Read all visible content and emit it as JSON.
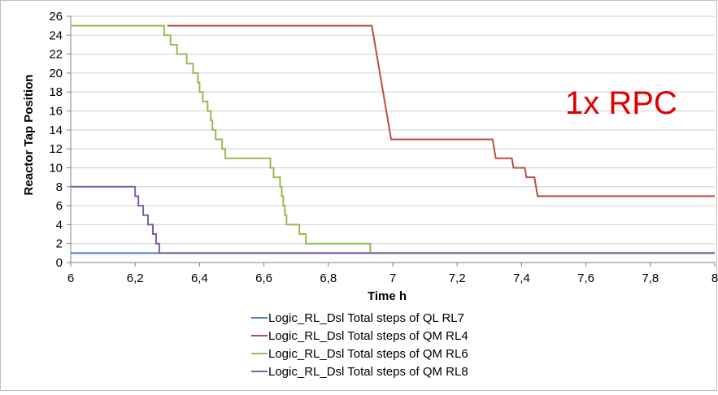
{
  "chart_data": {
    "type": "line",
    "title": "",
    "xlabel": "Time h",
    "ylabel": "Reactor Tap Position",
    "xlim": [
      6,
      8
    ],
    "ylim": [
      0,
      26
    ],
    "x_ticks": [
      "6",
      "6,2",
      "6,4",
      "6,6",
      "6,8",
      "7",
      "7,2",
      "7,4",
      "7,6",
      "7,8",
      "8"
    ],
    "y_ticks": [
      "0",
      "2",
      "4",
      "6",
      "8",
      "10",
      "12",
      "14",
      "16",
      "18",
      "20",
      "22",
      "24",
      "26"
    ],
    "grid": "horizontal",
    "legend_position": "bottom",
    "annotation": "1x RPC",
    "series": [
      {
        "name": "Logic_RL_Dsl Total steps of QL RL7",
        "color": "#4a7ebb",
        "points": [
          [
            6.0,
            1
          ],
          [
            8.0,
            1
          ]
        ]
      },
      {
        "name": "Logic_RL_Dsl Total steps of QM RL4",
        "color": "#be4b48",
        "points": [
          [
            6.3,
            25
          ],
          [
            6.935,
            25
          ],
          [
            6.94,
            24
          ],
          [
            6.945,
            23
          ],
          [
            6.95,
            22
          ],
          [
            6.955,
            21
          ],
          [
            6.96,
            20
          ],
          [
            6.965,
            19
          ],
          [
            6.97,
            18
          ],
          [
            6.975,
            17
          ],
          [
            6.98,
            16
          ],
          [
            6.985,
            15
          ],
          [
            6.99,
            14
          ],
          [
            6.995,
            13
          ],
          [
            7.31,
            13
          ],
          [
            7.315,
            12
          ],
          [
            7.32,
            11
          ],
          [
            7.37,
            11
          ],
          [
            7.375,
            10
          ],
          [
            7.41,
            10
          ],
          [
            7.415,
            9
          ],
          [
            7.44,
            9
          ],
          [
            7.445,
            8
          ],
          [
            7.45,
            7
          ],
          [
            8.0,
            7
          ]
        ]
      },
      {
        "name": "Logic_RL_Dsl Total steps of QM RL6",
        "color": "#98b954",
        "points": [
          [
            6.0,
            25
          ],
          [
            6.29,
            25
          ],
          [
            6.29,
            24
          ],
          [
            6.31,
            24
          ],
          [
            6.31,
            23
          ],
          [
            6.33,
            23
          ],
          [
            6.33,
            22
          ],
          [
            6.36,
            22
          ],
          [
            6.36,
            21
          ],
          [
            6.38,
            21
          ],
          [
            6.38,
            20
          ],
          [
            6.395,
            20
          ],
          [
            6.395,
            19
          ],
          [
            6.4,
            19
          ],
          [
            6.4,
            18
          ],
          [
            6.41,
            18
          ],
          [
            6.41,
            17
          ],
          [
            6.425,
            17
          ],
          [
            6.425,
            16
          ],
          [
            6.435,
            16
          ],
          [
            6.435,
            15
          ],
          [
            6.44,
            15
          ],
          [
            6.44,
            14
          ],
          [
            6.45,
            14
          ],
          [
            6.45,
            13
          ],
          [
            6.47,
            13
          ],
          [
            6.47,
            12
          ],
          [
            6.48,
            12
          ],
          [
            6.48,
            11
          ],
          [
            6.62,
            11
          ],
          [
            6.62,
            10
          ],
          [
            6.63,
            10
          ],
          [
            6.63,
            9
          ],
          [
            6.65,
            9
          ],
          [
            6.65,
            8
          ],
          [
            6.655,
            8
          ],
          [
            6.655,
            7
          ],
          [
            6.66,
            7
          ],
          [
            6.66,
            6
          ],
          [
            6.665,
            6
          ],
          [
            6.665,
            5
          ],
          [
            6.67,
            5
          ],
          [
            6.67,
            4
          ],
          [
            6.71,
            4
          ],
          [
            6.71,
            3
          ],
          [
            6.73,
            3
          ],
          [
            6.73,
            2
          ],
          [
            6.93,
            2
          ],
          [
            6.93,
            1
          ],
          [
            8.0,
            1
          ]
        ]
      },
      {
        "name": "Logic_RL_Dsl Total steps of QM RL8",
        "color": "#7d60a0",
        "points": [
          [
            6.0,
            8
          ],
          [
            6.2,
            8
          ],
          [
            6.2,
            7
          ],
          [
            6.21,
            7
          ],
          [
            6.21,
            6
          ],
          [
            6.225,
            6
          ],
          [
            6.225,
            5
          ],
          [
            6.24,
            5
          ],
          [
            6.24,
            4
          ],
          [
            6.255,
            4
          ],
          [
            6.255,
            3
          ],
          [
            6.265,
            3
          ],
          [
            6.265,
            2
          ],
          [
            6.275,
            2
          ],
          [
            6.275,
            1
          ],
          [
            8.0,
            1
          ]
        ]
      }
    ]
  }
}
